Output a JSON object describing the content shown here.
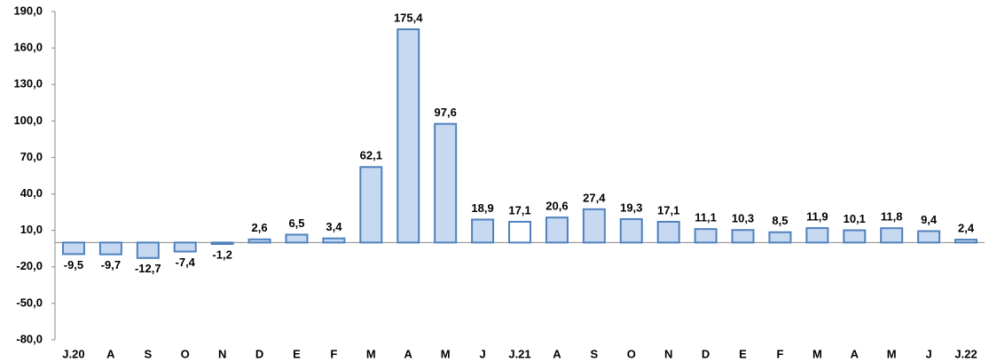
{
  "chart_data": {
    "type": "bar",
    "categories": [
      "J.20",
      "A",
      "S",
      "O",
      "N",
      "D",
      "E",
      "F",
      "M",
      "A",
      "M",
      "J",
      "J.21",
      "A",
      "S",
      "O",
      "N",
      "D",
      "E",
      "F",
      "M",
      "A",
      "M",
      "J",
      "J.22"
    ],
    "values": [
      -9.5,
      -9.7,
      -12.7,
      -7.4,
      -1.2,
      2.6,
      6.5,
      3.4,
      62.1,
      175.4,
      97.6,
      18.9,
      17.1,
      20.6,
      27.4,
      19.3,
      17.1,
      11.1,
      10.3,
      8.5,
      11.9,
      10.1,
      11.8,
      9.4,
      2.4
    ],
    "value_labels": [
      "-9,5",
      "-9,7",
      "-12,7",
      "-7,4",
      "-1,2",
      "2,6",
      "6,5",
      "3,4",
      "62,1",
      "175,4",
      "97,6",
      "18,9",
      "17,1",
      "20,6",
      "27,4",
      "19,3",
      "17,1",
      "11,1",
      "10,3",
      "8,5",
      "11,9",
      "10,1",
      "11,8",
      "9,4",
      "2,4"
    ],
    "colors": [
      "#c6d9f1",
      "#c6d9f1",
      "#c6d9f1",
      "#c6d9f1",
      "#c6d9f1",
      "#c6d9f1",
      "#c6d9f1",
      "#c6d9f1",
      "#c6d9f1",
      "#c6d9f1",
      "#c6d9f1",
      "#c6d9f1",
      "#ffffff",
      "#c6d9f1",
      "#c6d9f1",
      "#c6d9f1",
      "#c6d9f1",
      "#c6d9f1",
      "#c6d9f1",
      "#c6d9f1",
      "#c6d9f1",
      "#c6d9f1",
      "#c6d9f1",
      "#c6d9f1",
      "#c6d9f1"
    ],
    "edge_color": "#4f81bd",
    "ylim": [
      -80,
      190
    ],
    "yticks": [
      {
        "value": -80,
        "label": "-80,0"
      },
      {
        "value": -50,
        "label": "-50,0"
      },
      {
        "value": -20,
        "label": "-20,0"
      },
      {
        "value": 10,
        "label": "10,0"
      },
      {
        "value": 40,
        "label": "40,0"
      },
      {
        "value": 70,
        "label": "70,0"
      },
      {
        "value": 100,
        "label": "100,0"
      },
      {
        "value": 130,
        "label": "130,0"
      },
      {
        "value": 160,
        "label": "160,0"
      },
      {
        "value": 190,
        "label": "190,0"
      }
    ],
    "grid": false
  }
}
